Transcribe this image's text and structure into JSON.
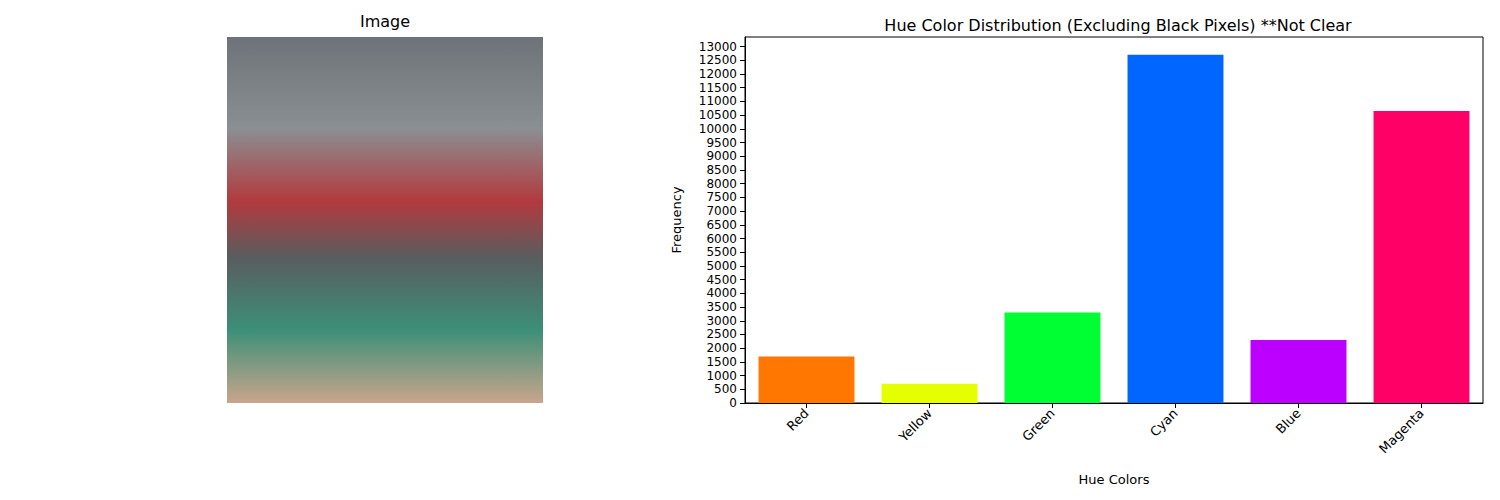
{
  "image": {
    "title": "Image"
  },
  "chart_data": {
    "type": "bar",
    "title": "Hue Color Distribution (Excluding Black Pixels) **Not Clear",
    "x_label": "Hue Colors",
    "y_label": "Frequency",
    "categories": [
      "Red",
      "Yellow",
      "Green",
      "Cyan",
      "Blue",
      "Magenta"
    ],
    "values": [
      1700,
      700,
      3300,
      12700,
      2300,
      10650
    ],
    "colors": [
      "#ff7700",
      "#e5ff00",
      "#00ff33",
      "#0066ff",
      "#bb00ff",
      "#ff0066"
    ],
    "ylim": [
      0,
      13350
    ],
    "yticks": [
      0,
      500,
      1000,
      1500,
      2000,
      2500,
      3000,
      3500,
      4000,
      4500,
      5000,
      5500,
      6000,
      6500,
      7000,
      7500,
      8000,
      8500,
      9000,
      9500,
      10000,
      10500,
      11000,
      11500,
      12000,
      12500,
      13000
    ],
    "grid": false
  }
}
